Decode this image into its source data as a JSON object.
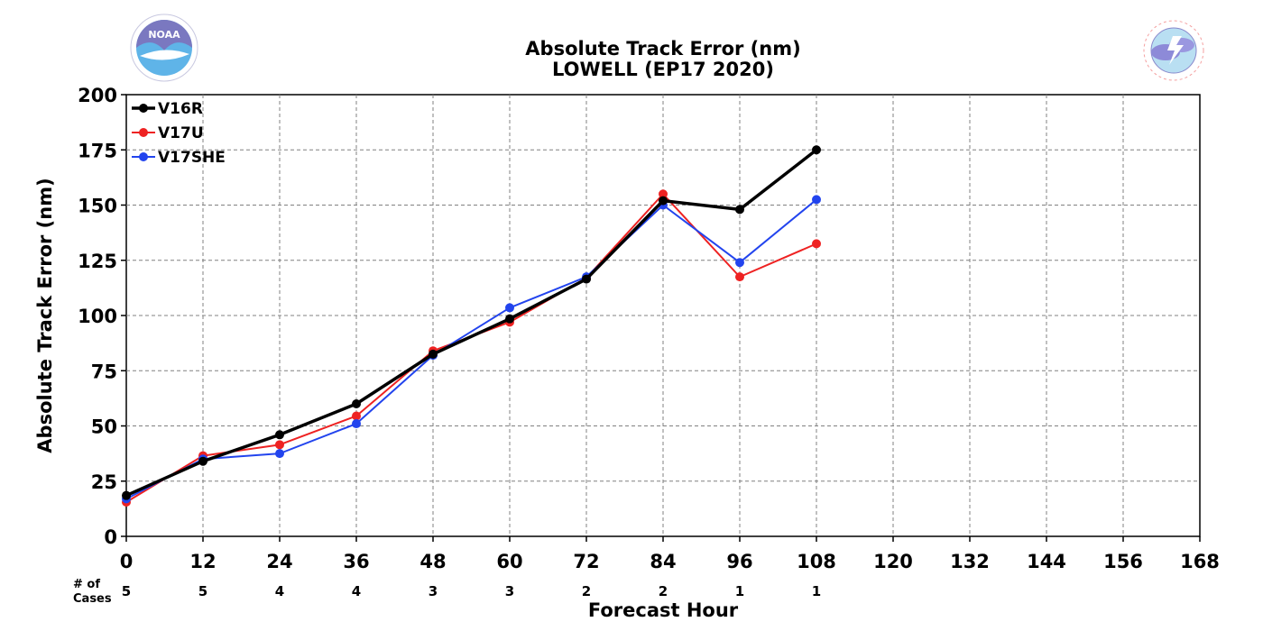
{
  "chart_data": {
    "type": "line",
    "title": "Absolute Track Error (nm)",
    "subtitle": "LOWELL (EP17 2020)",
    "xlabel": "Forecast Hour",
    "ylabel": "Absolute Track Error (nm)",
    "xlim": [
      0,
      168
    ],
    "ylim": [
      0,
      200
    ],
    "x_ticks": [
      0,
      12,
      24,
      36,
      48,
      60,
      72,
      84,
      96,
      108,
      120,
      132,
      144,
      156,
      168
    ],
    "y_ticks": [
      0,
      25,
      50,
      75,
      100,
      125,
      150,
      175,
      200
    ],
    "grid": true,
    "legend_position": "top-left",
    "series": [
      {
        "name": "V16R",
        "color": "#000000",
        "x": [
          0,
          12,
          24,
          36,
          48,
          60,
          72,
          84,
          96,
          108
        ],
        "values": [
          18.5,
          34,
          46,
          60,
          82.5,
          98.5,
          116.5,
          152,
          148,
          175
        ]
      },
      {
        "name": "V17U",
        "color": "#ee2222",
        "x": [
          0,
          12,
          24,
          36,
          48,
          60,
          72,
          84,
          96,
          108
        ],
        "values": [
          15.5,
          36.5,
          41.5,
          54.5,
          84,
          97,
          117,
          155,
          117.5,
          132.5
        ]
      },
      {
        "name": "V17SHE",
        "color": "#2244ee",
        "x": [
          0,
          12,
          24,
          36,
          48,
          60,
          72,
          84,
          96,
          108
        ],
        "values": [
          17,
          35,
          37.5,
          51,
          82,
          103.5,
          117.5,
          150,
          124,
          152.5
        ]
      }
    ],
    "cases": {
      "label_line1": "# of",
      "label_line2": "Cases",
      "x": [
        0,
        12,
        24,
        36,
        48,
        60,
        72,
        84,
        96,
        108
      ],
      "values": [
        "5",
        "5",
        "4",
        "4",
        "3",
        "3",
        "2",
        "2",
        "1",
        "1"
      ]
    }
  },
  "logos": {
    "left": {
      "name": "noaa-logo",
      "text": "NOAA"
    },
    "right": {
      "name": "nws-logo",
      "text": "NATIONAL WEATHER SERVICE"
    }
  }
}
